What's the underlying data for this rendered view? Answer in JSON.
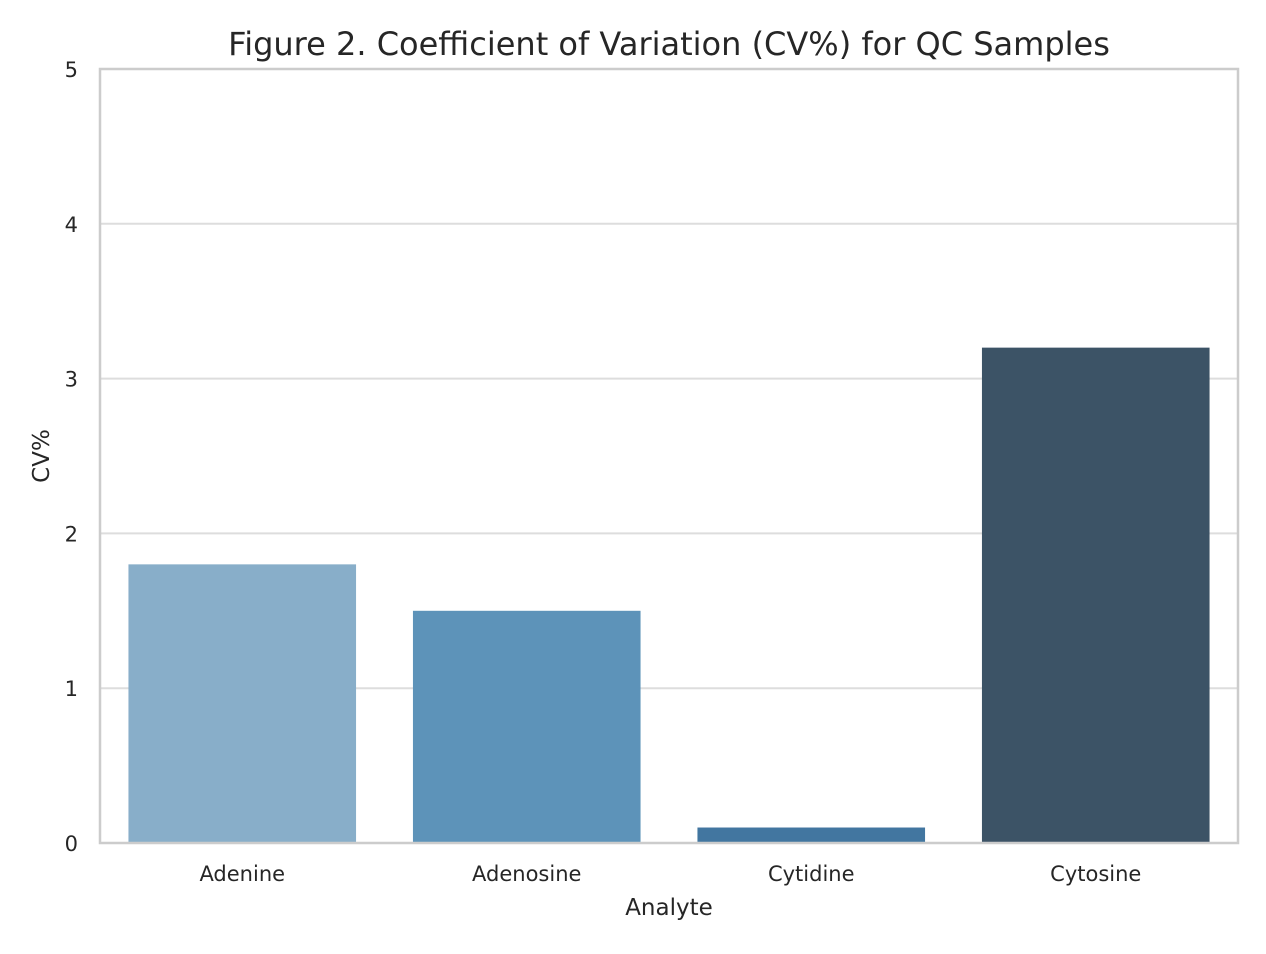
{
  "chart_data": {
    "type": "bar",
    "title": "Figure 2. Coefficient of Variation (CV%) for QC Samples",
    "xlabel": "Analyte",
    "ylabel": "CV%",
    "categories": [
      "Adenine",
      "Adenosine",
      "Cytidine",
      "Cytosine"
    ],
    "values": [
      1.8,
      1.5,
      0.1,
      3.2
    ],
    "bar_colors": [
      "#88aec9",
      "#5d93b9",
      "#4276a0",
      "#3c5366"
    ],
    "ylim": [
      0,
      5
    ],
    "yticks": [
      0,
      1,
      2,
      3,
      4,
      5
    ],
    "grid": "horizontal",
    "legend": "none"
  },
  "colors": {
    "background": "#ffffff",
    "grid": "#dddddd",
    "spine": "#cccccc",
    "text": "#262626"
  }
}
